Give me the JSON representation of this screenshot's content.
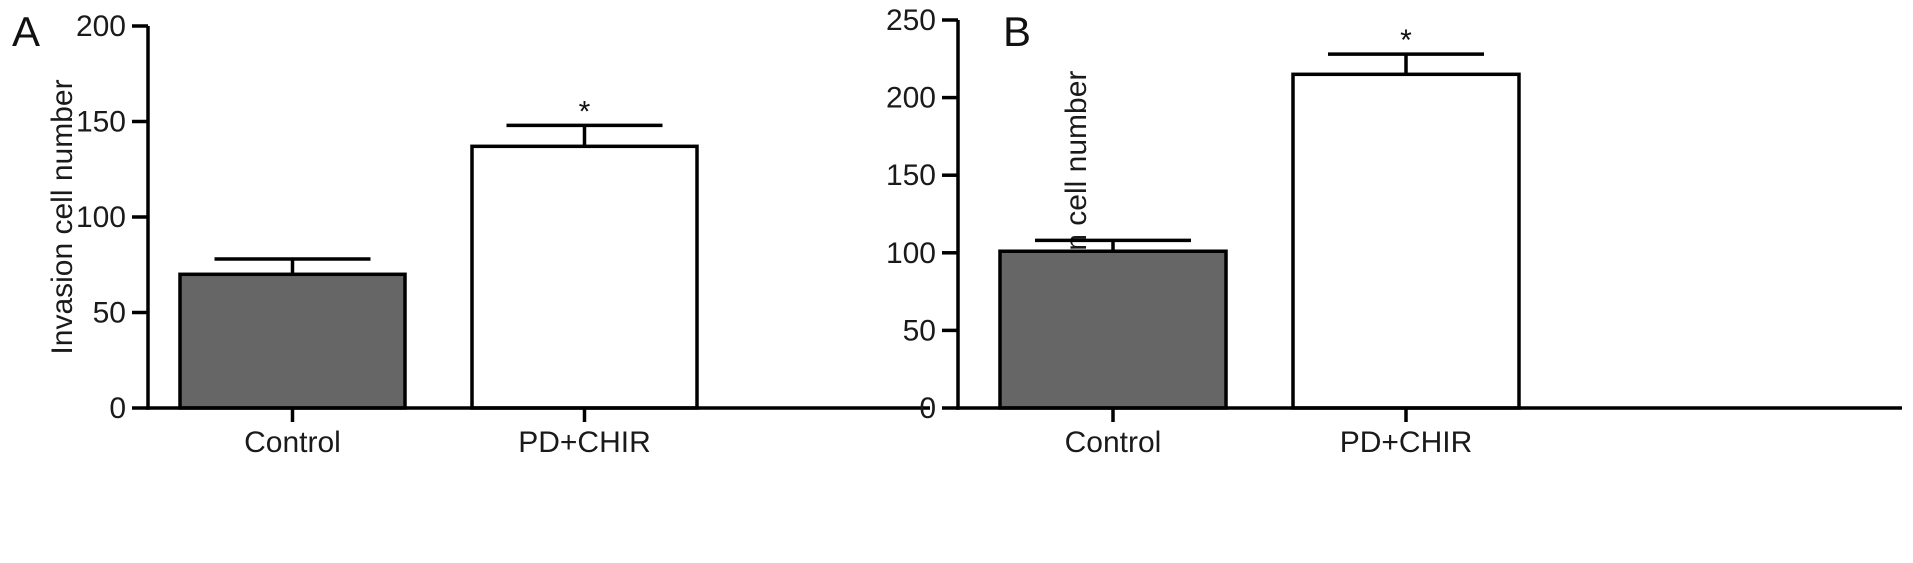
{
  "chart_data": [
    {
      "panel": "A",
      "type": "bar",
      "ylabel": "Invasion cell number",
      "ylim": [
        0,
        200
      ],
      "yticks": [
        0,
        50,
        100,
        150,
        200
      ],
      "categories": [
        "Control",
        "PD+CHIR"
      ],
      "values": [
        70,
        137
      ],
      "errors": [
        8,
        11
      ],
      "significance": [
        "",
        "*"
      ],
      "bar_colors": [
        "#666666",
        "#ffffff"
      ]
    },
    {
      "panel": "B",
      "type": "bar",
      "ylabel": "Migration cell number",
      "ylim": [
        0,
        250
      ],
      "yticks": [
        0,
        50,
        100,
        150,
        200,
        250
      ],
      "categories": [
        "Control",
        "PD+CHIR"
      ],
      "values": [
        101,
        215
      ],
      "errors": [
        7,
        13
      ],
      "significance": [
        "",
        "*"
      ],
      "bar_colors": [
        "#666666",
        "#ffffff"
      ]
    }
  ]
}
